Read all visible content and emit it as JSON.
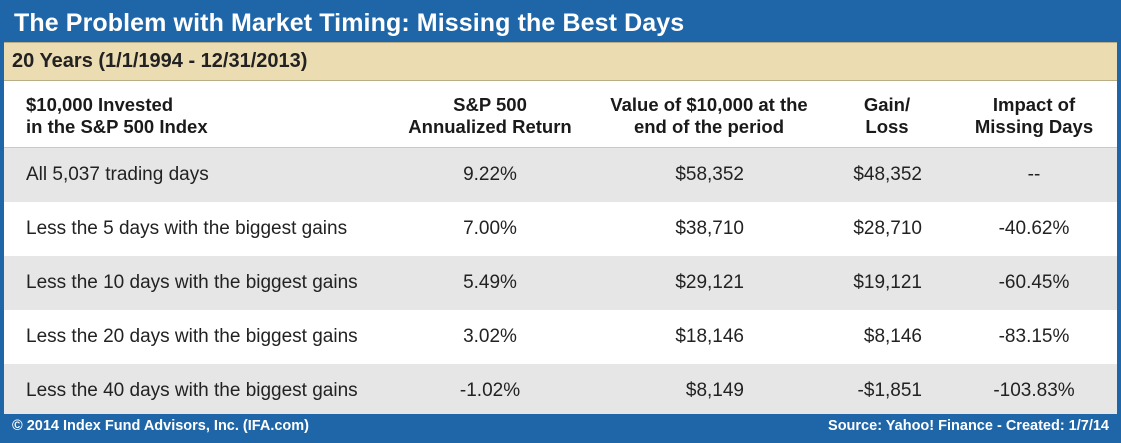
{
  "title": "The Problem with Market Timing: Missing the Best Days",
  "subtitle": "20 Years (1/1/1994 - 12/31/2013)",
  "headers": {
    "col1": [
      "$10,000 Invested",
      "in the S&P 500 Index"
    ],
    "col2": [
      "S&P 500",
      "Annualized Return"
    ],
    "col3": [
      "Value of $10,000 at the",
      "end of the period"
    ],
    "col4": [
      "Gain/",
      "Loss"
    ],
    "col5": [
      "Impact of",
      "Missing Days"
    ]
  },
  "footer": {
    "copyright": "© 2014 Index Fund Advisors, Inc. (IFA.com)",
    "source": "Source: Yahoo! Finance - Created: 1/7/14"
  },
  "colors": {
    "brand_blue": "#1f66a8",
    "subtitle_bg": "#ecdcb2",
    "row_shade": "#e6e6e6"
  },
  "chart_data": {
    "type": "table",
    "columns": [
      "$10,000 Invested in the S&P 500 Index",
      "S&P 500 Annualized Return",
      "Value of $10,000 at the end of the period",
      "Gain/ Loss",
      "Impact of Missing Days"
    ],
    "rows": [
      {
        "label": "All 5,037 trading days",
        "annualized_return": "9.22%",
        "value": "$58,352",
        "gain_loss": "$48,352",
        "impact": "--"
      },
      {
        "label": "Less the 5 days with the biggest gains",
        "annualized_return": "7.00%",
        "value": "$38,710",
        "gain_loss": "$28,710",
        "impact": "-40.62%"
      },
      {
        "label": "Less the 10 days with the biggest gains",
        "annualized_return": "5.49%",
        "value": "$29,121",
        "gain_loss": "$19,121",
        "impact": "-60.45%"
      },
      {
        "label": "Less the 20 days with the biggest gains",
        "annualized_return": "3.02%",
        "value": "$18,146",
        "gain_loss": "$8,146",
        "impact": "-83.15%"
      },
      {
        "label": "Less the 40 days with the biggest gains",
        "annualized_return": "-1.02%",
        "value": "$8,149",
        "gain_loss": "-$1,851",
        "impact": "-103.83%"
      }
    ]
  }
}
